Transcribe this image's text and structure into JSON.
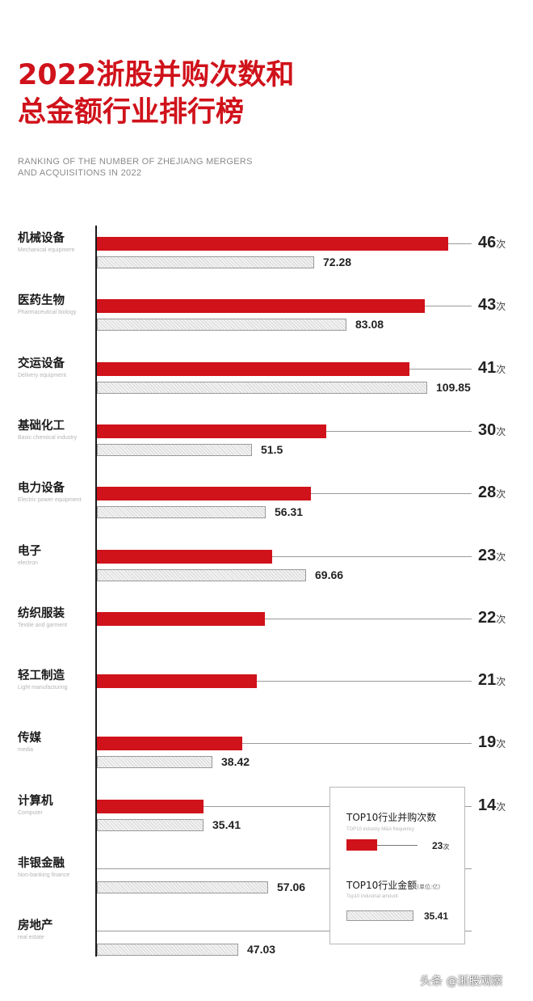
{
  "title": "2022浙股并购次数和\n总金额行业排行榜",
  "subtitle": "RANKING OF THE NUMBER OF ZHEJIANG MERGERS\nAND ACQUISITIONS IN 2022",
  "watermark": "头条 @浙股观察",
  "colors": {
    "count_bar": "#d0121b",
    "amount_bar": "#f2f2f2"
  },
  "chart_data": {
    "type": "bar",
    "orientation": "horizontal",
    "categories": [
      "机械设备",
      "医药生物",
      "交运设备",
      "基础化工",
      "电力设备",
      "电子",
      "纺织服装",
      "轻工制造",
      "传媒",
      "计算机",
      "非银金融",
      "房地产"
    ],
    "categories_en": [
      "Mechanical equipment",
      "Pharmaceutical biology",
      "Delivery equipment",
      "Basic chemical industry",
      "Electric power equipment",
      "electron",
      "Textile and garment",
      "Light manufacturing",
      "media",
      "Computer",
      "Non-banking finance",
      "real estate"
    ],
    "series": [
      {
        "name": "TOP10行业并购次数",
        "unit": "次",
        "values": [
          46,
          43,
          41,
          30,
          28,
          23,
          22,
          21,
          19,
          14,
          null,
          null
        ]
      },
      {
        "name": "TOP10行业金额",
        "unit": "亿",
        "values": [
          72.28,
          83.08,
          109.85,
          51.5,
          56.31,
          69.66,
          null,
          null,
          38.42,
          35.41,
          57.06,
          47.03
        ]
      }
    ],
    "count_labels": [
      "46",
      "43",
      "41",
      "30",
      "28",
      "23",
      "22",
      "21",
      "19",
      "14",
      "",
      ""
    ],
    "amount_labels": [
      "72.28",
      "83.08",
      "109.85",
      "51.5",
      "56.31",
      "69.66",
      "",
      "",
      "38.42",
      "35.41",
      "57.06",
      "47.03"
    ],
    "count_unit": "次",
    "legend": {
      "count_title": "TOP10行业并购次数",
      "count_sub": "TOP10 industry M&A frequency",
      "count_example": "23",
      "count_example_unit": "次",
      "amount_title": "TOP10行业金额",
      "amount_note": "(单位:亿)",
      "amount_sub": "Top10 industrial amount",
      "amount_example": "35.41",
      "placement": "bottom-right"
    }
  }
}
